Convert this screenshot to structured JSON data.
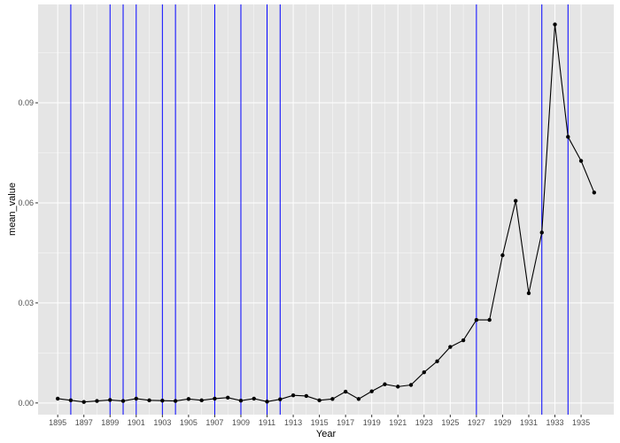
{
  "chart_data": {
    "type": "line",
    "xlabel": "Year",
    "ylabel": "mean_value",
    "xlim": [
      1893.5,
      1937.5
    ],
    "ylim": [
      -0.0035,
      0.1195
    ],
    "x_ticks": [
      1895,
      1897,
      1899,
      1901,
      1903,
      1905,
      1907,
      1909,
      1911,
      1913,
      1915,
      1917,
      1919,
      1921,
      1923,
      1925,
      1927,
      1929,
      1931,
      1933,
      1935
    ],
    "x_tick_labels": [
      "1895",
      "1897",
      "1899",
      "1901",
      "1903",
      "1905",
      "1907",
      "1909",
      "1911",
      "1913",
      "1915",
      "1917",
      "1919",
      "1921",
      "1923",
      "1925",
      "1927",
      "1929",
      "1931",
      "1933",
      "1935"
    ],
    "y_ticks": [
      0.0,
      0.03,
      0.06,
      0.09
    ],
    "y_tick_labels": [
      "0.00",
      "0.03",
      "0.06",
      "0.09"
    ],
    "grid": true,
    "background": "#e5e5e5",
    "grid_color": "#ffffff",
    "line_color": "#000000",
    "vline_color": "#0000ff",
    "vlines": [
      1896,
      1899,
      1900,
      1901,
      1903,
      1904,
      1907,
      1909,
      1911,
      1912,
      1927,
      1932,
      1934
    ],
    "series": [
      {
        "x": [
          1895,
          1896,
          1897,
          1898,
          1899,
          1900,
          1901,
          1902,
          1903,
          1904,
          1905,
          1906,
          1907,
          1908,
          1909,
          1910,
          1911,
          1912,
          1913,
          1914,
          1915,
          1916,
          1917,
          1918,
          1919,
          1920,
          1921,
          1922,
          1923,
          1924,
          1925,
          1926,
          1927,
          1928,
          1929,
          1930,
          1931,
          1932,
          1933,
          1934,
          1935,
          1936
        ],
        "y": [
          0.0013,
          0.0008,
          0.0003,
          0.0006,
          0.0009,
          0.0006,
          0.0013,
          0.0008,
          0.0007,
          0.0006,
          0.0012,
          0.0008,
          0.0013,
          0.0016,
          0.0007,
          0.0013,
          0.0004,
          0.0011,
          0.0023,
          0.0021,
          0.0008,
          0.0012,
          0.0034,
          0.0012,
          0.0035,
          0.0056,
          0.0049,
          0.0054,
          0.0092,
          0.0125,
          0.0168,
          0.0188,
          0.0249,
          0.0249,
          0.0443,
          0.0606,
          0.0329,
          0.0511,
          0.1135,
          0.0798,
          0.0726,
          0.0631
        ]
      }
    ]
  }
}
